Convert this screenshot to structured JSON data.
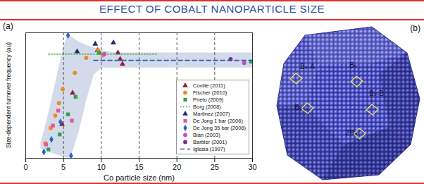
{
  "header": {
    "title": "EFFECT OF COBALT NANOPARTICLE SIZE"
  },
  "chart_data": {
    "type": "scatter",
    "panel_label": "(a)",
    "x_label": "Co particle size (nm)",
    "y_label": "Size-dependent turnover frequency (au)",
    "xlim": [
      0,
      30
    ],
    "xticks": [
      0,
      5,
      10,
      15,
      20,
      25,
      30
    ],
    "ylim": [
      0,
      1
    ],
    "tick_labels": "x",
    "grid": true,
    "legend": "lower right",
    "band": {
      "color": "#d3daea",
      "x": [
        2,
        3,
        4,
        5,
        5.6,
        6,
        7,
        8,
        9,
        10,
        12,
        15,
        20,
        25,
        30
      ],
      "upper": [
        0.12,
        0.35,
        0.62,
        0.88,
        0.99,
        0.97,
        0.93,
        0.9,
        0.88,
        0.86,
        0.84,
        0.84,
        0.84,
        0.84,
        0.84
      ],
      "lower": [
        0.08,
        0.05,
        0.03,
        0.01,
        0.0,
        0.01,
        0.2,
        0.45,
        0.66,
        0.72,
        0.72,
        0.72,
        0.72,
        0.72,
        0.72
      ]
    },
    "series": [
      {
        "name": "Coville (2011)",
        "type": "scatter",
        "color": "#8b1f41",
        "marker": "triangle",
        "x": [
          4.8,
          6.2,
          9.5,
          12.2,
          12.5,
          12.8
        ],
        "values": [
          0.27,
          0.52,
          0.86,
          0.84,
          0.79,
          0.75
        ]
      },
      {
        "name": "Fischer (2010)",
        "type": "scatter",
        "color": "#f0892a",
        "marker": "circle",
        "x": [
          2.6,
          3.3,
          3.9,
          4.4,
          4.9,
          6.5,
          8.0,
          9.6,
          10.2
        ],
        "values": [
          0.12,
          0.24,
          0.34,
          0.44,
          0.55,
          0.68,
          0.8,
          0.86,
          0.82
        ]
      },
      {
        "name": "Prieto (2009)",
        "type": "scatter",
        "color": "#2ea24a",
        "marker": "square",
        "x": [
          3.0,
          4.5,
          5.6,
          6.6,
          9.7,
          29.8
        ],
        "values": [
          0.07,
          0.19,
          0.35,
          0.49,
          0.84,
          0.77
        ]
      },
      {
        "name": "Borg (2008)",
        "type": "line",
        "color": "#3aa83a",
        "line_style": "dotted",
        "x": [
          3,
          17.5
        ],
        "values": [
          0.83,
          0.83
        ]
      },
      {
        "name": "Martinez (2007)",
        "type": "scatter",
        "color": "#1f2d6b",
        "marker": "triangle",
        "x": [
          6.8,
          9.2,
          11.6
        ],
        "values": [
          0.85,
          0.91,
          0.92
        ]
      },
      {
        "name": "De Jong 1 bar (2006)",
        "type": "scatter",
        "color": "#e2579c",
        "marker": "square",
        "x": [
          2.7,
          3.6,
          4.3,
          6.1
        ],
        "values": [
          0.11,
          0.26,
          0.38,
          0.3
        ]
      },
      {
        "name": "De Jong 35 bar (2006)",
        "type": "scatter",
        "color": "#2367c9",
        "marker": "diamond",
        "x": [
          2.4,
          3.4,
          4.6,
          5.6,
          6.0
        ],
        "values": [
          0.05,
          0.15,
          0.29,
          0.98,
          0.02
        ]
      },
      {
        "name": "Bian (2003)",
        "type": "scatter",
        "color": "#c84ac8",
        "marker": "circle",
        "x": [
          10.4,
          28.9
        ],
        "values": [
          0.83,
          0.76
        ]
      },
      {
        "name": "Barbier (2001)",
        "type": "scatter",
        "color": "#7a2d90",
        "marker": "circle",
        "x": [
          27.1
        ],
        "values": [
          0.79
        ]
      },
      {
        "name": "Iglesia (1997)",
        "type": "line",
        "color": "#2a5db0",
        "line_style": "dashed",
        "x": [
          9,
          30
        ],
        "values": [
          0.78,
          0.78
        ]
      }
    ]
  },
  "panel_b": {
    "panel_label": "(b)",
    "sites": [
      {
        "label": "B₅-A"
      },
      {
        "label": "B₆"
      },
      {
        "label": "B₄"
      },
      {
        "label": "B₅-B"
      },
      {
        "label": "2B₃"
      }
    ]
  }
}
